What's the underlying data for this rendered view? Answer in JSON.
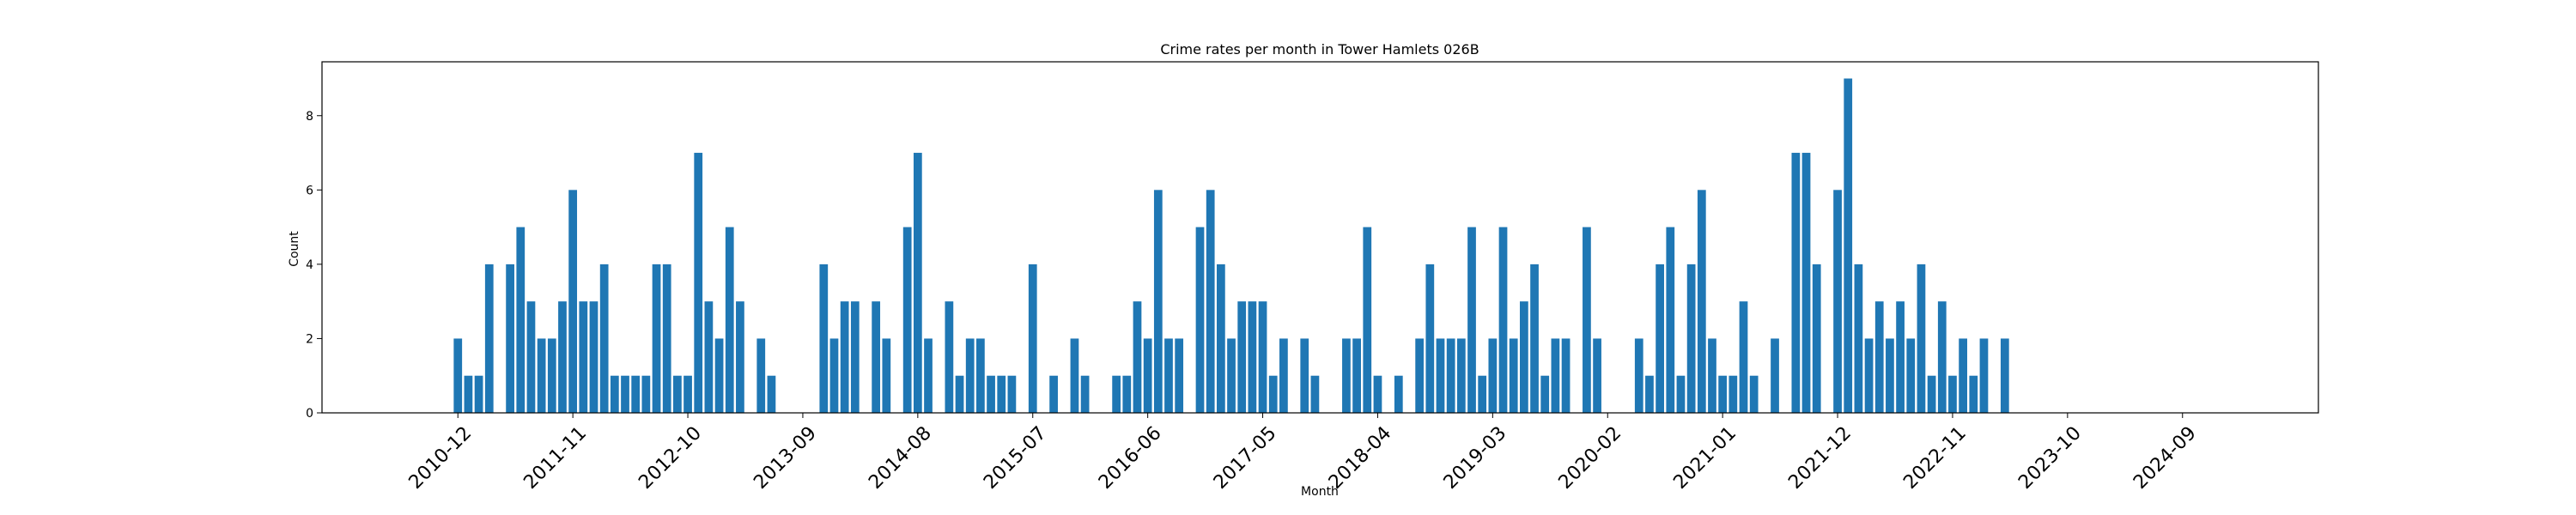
{
  "chart_data": {
    "type": "bar",
    "title": "Crime rates per month in Tower Hamlets 026B",
    "xlabel": "Month",
    "ylabel": "Count",
    "color": "#1f77b4",
    "ylim": [
      0,
      9.45
    ],
    "yticks": [
      0,
      2,
      4,
      6,
      8
    ],
    "xlim": [
      "2009-11",
      "2025-10"
    ],
    "xticks": [
      "2010-12",
      "2011-11",
      "2012-10",
      "2013-09",
      "2014-08",
      "2015-07",
      "2016-06",
      "2017-05",
      "2018-04",
      "2019-03",
      "2020-02",
      "2021-01",
      "2021-12",
      "2022-11",
      "2023-10",
      "2024-09"
    ],
    "categories": [
      "2010-12",
      "2011-01",
      "2011-02",
      "2011-03",
      "2011-04",
      "2011-05",
      "2011-06",
      "2011-07",
      "2011-08",
      "2011-09",
      "2011-10",
      "2011-11",
      "2011-12",
      "2012-01",
      "2012-02",
      "2012-03",
      "2012-04",
      "2012-05",
      "2012-06",
      "2012-07",
      "2012-08",
      "2012-09",
      "2012-10",
      "2012-11",
      "2012-12",
      "2013-01",
      "2013-02",
      "2013-03",
      "2013-04",
      "2013-05",
      "2013-06",
      "2013-07",
      "2013-08",
      "2013-09",
      "2013-10",
      "2013-11",
      "2013-12",
      "2014-01",
      "2014-02",
      "2014-03",
      "2014-04",
      "2014-05",
      "2014-06",
      "2014-07",
      "2014-08",
      "2014-09",
      "2014-10",
      "2014-11",
      "2014-12",
      "2015-01",
      "2015-02",
      "2015-03",
      "2015-04",
      "2015-05",
      "2015-06",
      "2015-07",
      "2015-08",
      "2015-09",
      "2015-10",
      "2015-11",
      "2015-12",
      "2016-01",
      "2016-02",
      "2016-03",
      "2016-04",
      "2016-05",
      "2016-06",
      "2016-07",
      "2016-08",
      "2016-09",
      "2016-10",
      "2016-11",
      "2016-12",
      "2017-01",
      "2017-02",
      "2017-03",
      "2017-04",
      "2017-05",
      "2017-06",
      "2017-07",
      "2017-08",
      "2017-09",
      "2017-10",
      "2017-11",
      "2017-12",
      "2018-01",
      "2018-02",
      "2018-03",
      "2018-04",
      "2018-05",
      "2018-06",
      "2018-07",
      "2018-08",
      "2018-09",
      "2018-10",
      "2018-11",
      "2018-12",
      "2019-01",
      "2019-02",
      "2019-03",
      "2019-04",
      "2019-05",
      "2019-06",
      "2019-07",
      "2019-08",
      "2019-09",
      "2019-10",
      "2019-11",
      "2019-12",
      "2020-01",
      "2020-02",
      "2020-03",
      "2020-04",
      "2020-05",
      "2020-06",
      "2020-07",
      "2020-08",
      "2020-09",
      "2020-10",
      "2020-11",
      "2020-12",
      "2021-01",
      "2021-02",
      "2021-03",
      "2021-04",
      "2021-05",
      "2021-06",
      "2021-07",
      "2021-08",
      "2021-09",
      "2021-10",
      "2021-11",
      "2021-12",
      "2022-01",
      "2022-02",
      "2022-03",
      "2022-04",
      "2022-05",
      "2022-06",
      "2022-07",
      "2022-08",
      "2022-09",
      "2022-10",
      "2022-11",
      "2022-12",
      "2023-01",
      "2023-02",
      "2023-03",
      "2023-04"
    ],
    "values": [
      2,
      1,
      1,
      4,
      0,
      4,
      5,
      3,
      2,
      2,
      3,
      6,
      3,
      3,
      4,
      1,
      1,
      1,
      1,
      4,
      4,
      1,
      1,
      7,
      3,
      2,
      5,
      3,
      0,
      2,
      1,
      0,
      0,
      0,
      0,
      4,
      2,
      3,
      3,
      0,
      3,
      2,
      0,
      5,
      7,
      2,
      0,
      3,
      1,
      2,
      2,
      1,
      1,
      1,
      0,
      4,
      0,
      1,
      0,
      2,
      1,
      0,
      0,
      1,
      1,
      3,
      2,
      6,
      2,
      2,
      0,
      5,
      6,
      4,
      2,
      3,
      3,
      3,
      1,
      2,
      0,
      2,
      1,
      0,
      0,
      2,
      2,
      5,
      1,
      0,
      1,
      0,
      2,
      4,
      2,
      2,
      2,
      5,
      1,
      2,
      5,
      2,
      3,
      4,
      1,
      2,
      2,
      0,
      5,
      2,
      0,
      0,
      0,
      2,
      1,
      4,
      5,
      1,
      4,
      6,
      2,
      1,
      1,
      3,
      1,
      0,
      2,
      0,
      7,
      7,
      4,
      0,
      6,
      9,
      4,
      2,
      3,
      2,
      3,
      2,
      4,
      1,
      3,
      1,
      2,
      1,
      2,
      0,
      2
    ]
  }
}
